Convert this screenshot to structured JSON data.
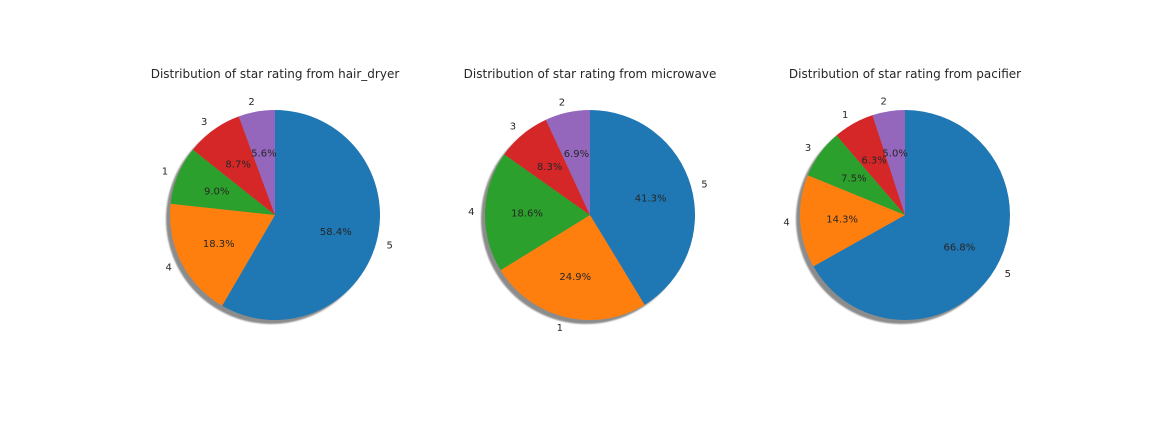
{
  "chart_data": [
    {
      "type": "pie",
      "title": "Distribution of star rating from hair_dryer",
      "slices": [
        {
          "label": "5",
          "value": 58.4,
          "pct_label": "58.4%",
          "color": "#1f77b4"
        },
        {
          "label": "4",
          "value": 18.3,
          "pct_label": "18.3%",
          "color": "#ff7f0e"
        },
        {
          "label": "1",
          "value": 9.0,
          "pct_label": "9.0%",
          "color": "#2ca02c"
        },
        {
          "label": "3",
          "value": 8.7,
          "pct_label": "8.7%",
          "color": "#d62728"
        },
        {
          "label": "2",
          "value": 5.6,
          "pct_label": "5.6%",
          "color": "#9467bd"
        }
      ]
    },
    {
      "type": "pie",
      "title": "Distribution of star rating from microwave",
      "slices": [
        {
          "label": "5",
          "value": 41.3,
          "pct_label": "41.3%",
          "color": "#1f77b4"
        },
        {
          "label": "1",
          "value": 24.9,
          "pct_label": "24.9%",
          "color": "#ff7f0e"
        },
        {
          "label": "4",
          "value": 18.6,
          "pct_label": "18.6%",
          "color": "#2ca02c"
        },
        {
          "label": "3",
          "value": 8.3,
          "pct_label": "8.3%",
          "color": "#d62728"
        },
        {
          "label": "2",
          "value": 6.9,
          "pct_label": "6.9%",
          "color": "#9467bd"
        }
      ]
    },
    {
      "type": "pie",
      "title": "Distribution of star rating from pacifier",
      "slices": [
        {
          "label": "5",
          "value": 66.8,
          "pct_label": "66.8%",
          "color": "#1f77b4"
        },
        {
          "label": "4",
          "value": 14.3,
          "pct_label": "14.3%",
          "color": "#ff7f0e"
        },
        {
          "label": "3",
          "value": 7.5,
          "pct_label": "7.5%",
          "color": "#2ca02c"
        },
        {
          "label": "1",
          "value": 6.3,
          "pct_label": "6.3%",
          "color": "#d62728"
        },
        {
          "label": "2",
          "value": 5.0,
          "pct_label": "5.0%",
          "color": "#9467bd"
        }
      ]
    }
  ]
}
